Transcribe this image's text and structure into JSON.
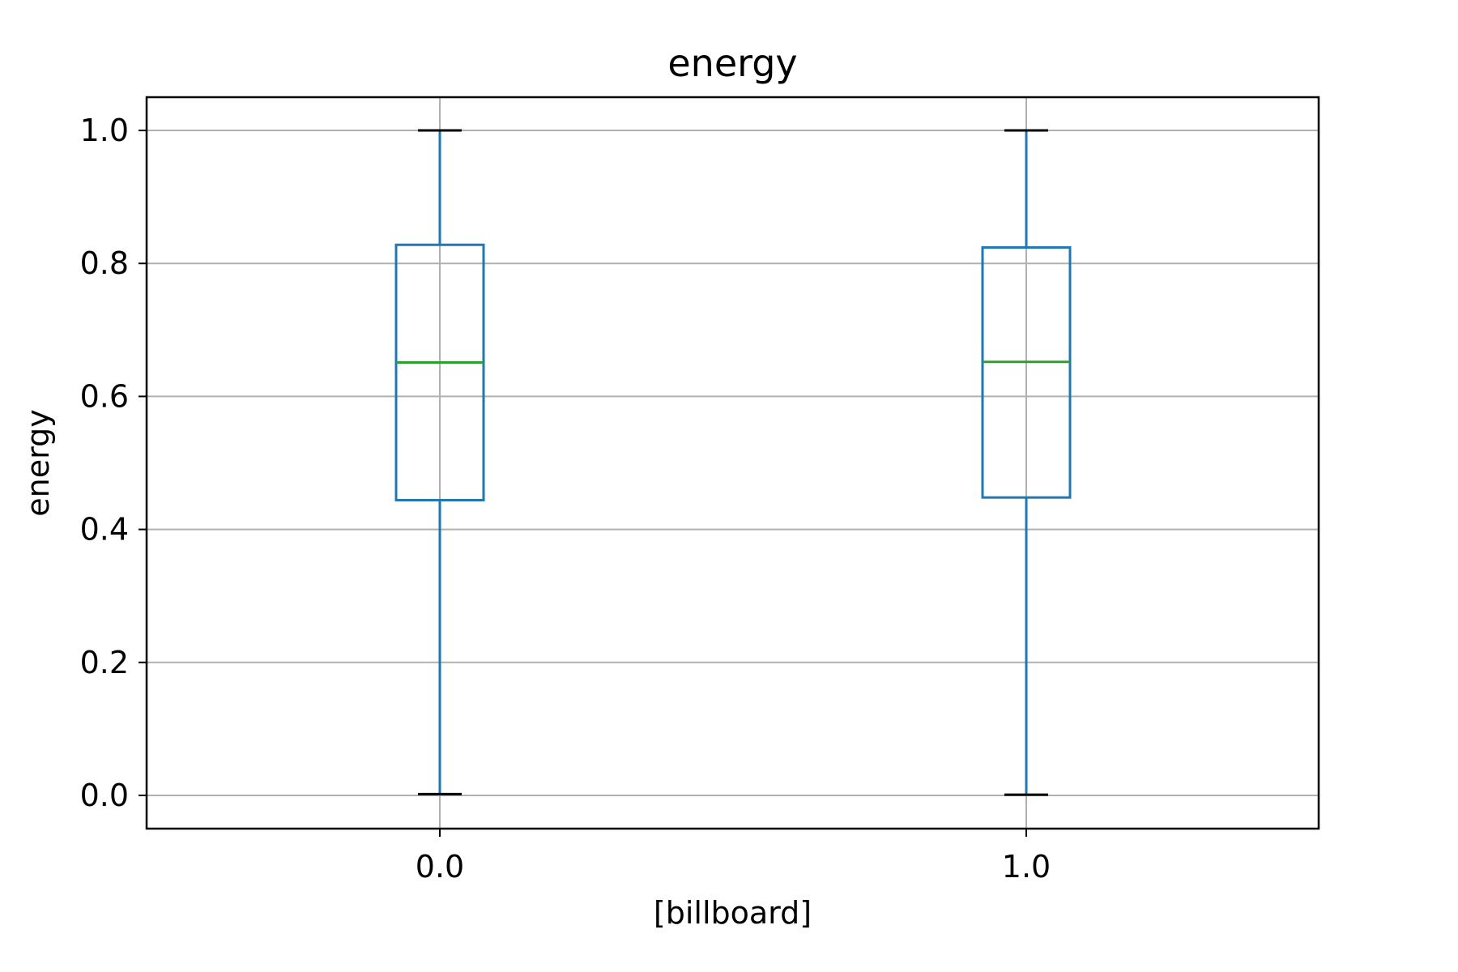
{
  "chart_data": {
    "type": "box",
    "title": "energy",
    "xlabel": "[billboard]",
    "ylabel": "energy",
    "categories": [
      "0.0",
      "1.0"
    ],
    "boxes": [
      {
        "category": "0.0",
        "whisker_low": 0.002,
        "q1": 0.444,
        "median": 0.651,
        "q3": 0.828,
        "whisker_high": 1.0
      },
      {
        "category": "1.0",
        "whisker_low": 0.001,
        "q1": 0.448,
        "median": 0.652,
        "q3": 0.824,
        "whisker_high": 1.0
      }
    ],
    "yticks": [
      "0.0",
      "0.2",
      "0.4",
      "0.6",
      "0.8",
      "1.0"
    ],
    "ylim": [
      -0.05,
      1.05
    ],
    "grid": true,
    "colors": {
      "box": "#1f77b4",
      "median": "#2ca02c",
      "cap": "#000000",
      "grid": "#b0b0b0",
      "frame": "#000000"
    }
  }
}
